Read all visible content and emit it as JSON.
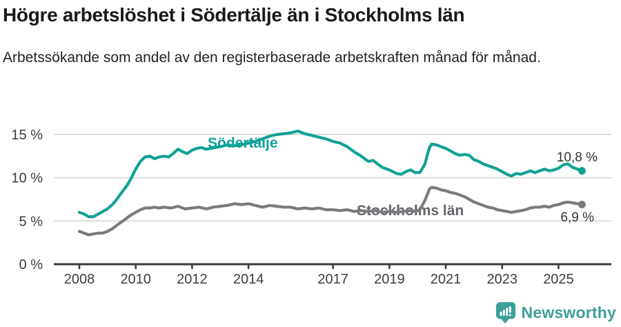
{
  "header": {
    "title": "Högre arbetslöshet i Södertälje än i Stockholms län",
    "subtitle": "Arbetssökande som andel av den registerbaserade arbetskraften månad för månad."
  },
  "footer": {
    "brand": "Newsworthy"
  },
  "colors": {
    "sodertalje": "#10a296",
    "stockholm_line": "#7b7b7e",
    "stockholm_label": "#64646a",
    "value_label": "#333333",
    "grid": "#dcdcdc",
    "axis": "#3a3a3a",
    "title_text": "#1a1a1a",
    "logo_teal": "#3f9e99"
  },
  "chart_data": {
    "type": "line",
    "title": "Högre arbetslöshet i Södertälje än i Stockholms län",
    "subtitle": "Arbetssökande som andel av den registerbaserade arbetskraften månad för månad.",
    "xlabel": "",
    "ylabel": "",
    "unit": "%",
    "grid": "horizontal-only",
    "legend_position": "inline-labels",
    "xlim": [
      2007.1,
      2026.9
    ],
    "ylim": [
      0,
      16
    ],
    "x_ticks": [
      2008,
      2010,
      2012,
      2014,
      2017,
      2019,
      2021,
      2023,
      2025
    ],
    "x_tick_labels": [
      "2008",
      "2010",
      "2012",
      "2014",
      "2017",
      "2019",
      "2021",
      "2023",
      "2025"
    ],
    "y_ticks": [
      0,
      5,
      10,
      15
    ],
    "y_tick_labels": [
      "0 %",
      "5 %",
      "10 %",
      "15 %"
    ],
    "series": [
      {
        "id": "sodertalje",
        "name": "Södertälje",
        "inline_label": "Södertälje",
        "end_label": "10,8 %",
        "end_value": 10.8,
        "color": "#10a296",
        "points": [
          [
            2008.0,
            6.0
          ],
          [
            2008.17,
            5.8
          ],
          [
            2008.33,
            5.5
          ],
          [
            2008.5,
            5.5
          ],
          [
            2008.67,
            5.8
          ],
          [
            2008.83,
            6.1
          ],
          [
            2009.0,
            6.4
          ],
          [
            2009.17,
            6.9
          ],
          [
            2009.33,
            7.5
          ],
          [
            2009.5,
            8.3
          ],
          [
            2009.67,
            9.0
          ],
          [
            2009.83,
            9.9
          ],
          [
            2010.0,
            11.0
          ],
          [
            2010.17,
            11.9
          ],
          [
            2010.33,
            12.4
          ],
          [
            2010.5,
            12.5
          ],
          [
            2010.67,
            12.2
          ],
          [
            2010.83,
            12.4
          ],
          [
            2011.0,
            12.5
          ],
          [
            2011.17,
            12.4
          ],
          [
            2011.33,
            12.8
          ],
          [
            2011.5,
            13.3
          ],
          [
            2011.67,
            13.0
          ],
          [
            2011.83,
            12.8
          ],
          [
            2012.0,
            13.2
          ],
          [
            2012.17,
            13.4
          ],
          [
            2012.33,
            13.5
          ],
          [
            2012.5,
            13.3
          ],
          [
            2012.67,
            13.4
          ],
          [
            2012.83,
            13.5
          ],
          [
            2013.0,
            13.6
          ],
          [
            2013.25,
            13.8
          ],
          [
            2013.5,
            13.7
          ],
          [
            2013.75,
            13.8
          ],
          [
            2014.0,
            14.0
          ],
          [
            2014.25,
            14.2
          ],
          [
            2014.5,
            14.5
          ],
          [
            2014.75,
            14.8
          ],
          [
            2015.0,
            15.0
          ],
          [
            2015.25,
            15.1
          ],
          [
            2015.5,
            15.2
          ],
          [
            2015.75,
            15.4
          ],
          [
            2016.0,
            15.1
          ],
          [
            2016.25,
            14.9
          ],
          [
            2016.5,
            14.7
          ],
          [
            2016.75,
            14.5
          ],
          [
            2017.0,
            14.2
          ],
          [
            2017.25,
            14.0
          ],
          [
            2017.5,
            13.6
          ],
          [
            2017.75,
            13.0
          ],
          [
            2018.0,
            12.5
          ],
          [
            2018.25,
            11.9
          ],
          [
            2018.42,
            12.0
          ],
          [
            2018.58,
            11.6
          ],
          [
            2018.75,
            11.2
          ],
          [
            2019.0,
            10.9
          ],
          [
            2019.25,
            10.5
          ],
          [
            2019.42,
            10.4
          ],
          [
            2019.58,
            10.7
          ],
          [
            2019.75,
            10.9
          ],
          [
            2019.92,
            10.6
          ],
          [
            2020.08,
            10.6
          ],
          [
            2020.25,
            11.5
          ],
          [
            2020.42,
            13.5
          ],
          [
            2020.5,
            13.9
          ],
          [
            2020.67,
            13.8
          ],
          [
            2020.83,
            13.6
          ],
          [
            2021.0,
            13.4
          ],
          [
            2021.17,
            13.1
          ],
          [
            2021.33,
            12.8
          ],
          [
            2021.5,
            12.6
          ],
          [
            2021.67,
            12.7
          ],
          [
            2021.83,
            12.6
          ],
          [
            2022.0,
            12.1
          ],
          [
            2022.17,
            11.9
          ],
          [
            2022.33,
            11.6
          ],
          [
            2022.5,
            11.4
          ],
          [
            2022.67,
            11.2
          ],
          [
            2022.83,
            11.0
          ],
          [
            2023.0,
            10.7
          ],
          [
            2023.17,
            10.4
          ],
          [
            2023.33,
            10.2
          ],
          [
            2023.5,
            10.5
          ],
          [
            2023.67,
            10.4
          ],
          [
            2023.83,
            10.6
          ],
          [
            2024.0,
            10.8
          ],
          [
            2024.17,
            10.6
          ],
          [
            2024.33,
            10.8
          ],
          [
            2024.5,
            11.0
          ],
          [
            2024.67,
            10.8
          ],
          [
            2024.83,
            10.9
          ],
          [
            2025.0,
            11.1
          ],
          [
            2025.17,
            11.5
          ],
          [
            2025.33,
            11.6
          ],
          [
            2025.5,
            11.2
          ],
          [
            2025.67,
            11.0
          ],
          [
            2025.83,
            10.8
          ]
        ]
      },
      {
        "id": "stockholms-lan",
        "name": "Stockholms län",
        "inline_label": "Stockholms län",
        "end_label": "6,9 %",
        "end_value": 6.9,
        "color": "#7b7b7e",
        "points": [
          [
            2008.0,
            3.8
          ],
          [
            2008.17,
            3.6
          ],
          [
            2008.33,
            3.4
          ],
          [
            2008.5,
            3.5
          ],
          [
            2008.67,
            3.6
          ],
          [
            2008.83,
            3.6
          ],
          [
            2009.0,
            3.8
          ],
          [
            2009.17,
            4.1
          ],
          [
            2009.33,
            4.5
          ],
          [
            2009.5,
            4.9
          ],
          [
            2009.67,
            5.3
          ],
          [
            2009.83,
            5.7
          ],
          [
            2010.0,
            6.0
          ],
          [
            2010.17,
            6.3
          ],
          [
            2010.33,
            6.5
          ],
          [
            2010.5,
            6.5
          ],
          [
            2010.67,
            6.6
          ],
          [
            2010.83,
            6.5
          ],
          [
            2011.0,
            6.6
          ],
          [
            2011.25,
            6.5
          ],
          [
            2011.5,
            6.7
          ],
          [
            2011.75,
            6.4
          ],
          [
            2012.0,
            6.5
          ],
          [
            2012.25,
            6.6
          ],
          [
            2012.5,
            6.4
          ],
          [
            2012.75,
            6.6
          ],
          [
            2013.0,
            6.7
          ],
          [
            2013.25,
            6.8
          ],
          [
            2013.5,
            7.0
          ],
          [
            2013.75,
            6.9
          ],
          [
            2014.0,
            7.0
          ],
          [
            2014.25,
            6.8
          ],
          [
            2014.5,
            6.6
          ],
          [
            2014.75,
            6.8
          ],
          [
            2015.0,
            6.7
          ],
          [
            2015.25,
            6.6
          ],
          [
            2015.5,
            6.6
          ],
          [
            2015.75,
            6.4
          ],
          [
            2016.0,
            6.5
          ],
          [
            2016.25,
            6.4
          ],
          [
            2016.5,
            6.5
          ],
          [
            2016.75,
            6.3
          ],
          [
            2017.0,
            6.3
          ],
          [
            2017.25,
            6.2
          ],
          [
            2017.5,
            6.3
          ],
          [
            2017.75,
            6.1
          ],
          [
            2018.0,
            6.2
          ],
          [
            2018.25,
            6.1
          ],
          [
            2018.5,
            6.2
          ],
          [
            2018.75,
            6.0
          ],
          [
            2019.0,
            6.1
          ],
          [
            2019.25,
            6.0
          ],
          [
            2019.5,
            6.1
          ],
          [
            2019.75,
            6.2
          ],
          [
            2019.92,
            6.1
          ],
          [
            2020.08,
            6.3
          ],
          [
            2020.25,
            7.3
          ],
          [
            2020.42,
            8.7
          ],
          [
            2020.5,
            8.9
          ],
          [
            2020.67,
            8.8
          ],
          [
            2020.83,
            8.6
          ],
          [
            2021.0,
            8.5
          ],
          [
            2021.17,
            8.3
          ],
          [
            2021.33,
            8.2
          ],
          [
            2021.5,
            8.0
          ],
          [
            2021.67,
            7.8
          ],
          [
            2021.83,
            7.5
          ],
          [
            2022.0,
            7.2
          ],
          [
            2022.17,
            7.0
          ],
          [
            2022.33,
            6.8
          ],
          [
            2022.5,
            6.6
          ],
          [
            2022.67,
            6.5
          ],
          [
            2022.83,
            6.3
          ],
          [
            2023.0,
            6.2
          ],
          [
            2023.17,
            6.1
          ],
          [
            2023.33,
            6.0
          ],
          [
            2023.5,
            6.1
          ],
          [
            2023.67,
            6.2
          ],
          [
            2023.83,
            6.3
          ],
          [
            2024.0,
            6.5
          ],
          [
            2024.17,
            6.6
          ],
          [
            2024.33,
            6.6
          ],
          [
            2024.5,
            6.7
          ],
          [
            2024.67,
            6.6
          ],
          [
            2024.83,
            6.8
          ],
          [
            2025.0,
            6.9
          ],
          [
            2025.17,
            7.1
          ],
          [
            2025.33,
            7.2
          ],
          [
            2025.5,
            7.1
          ],
          [
            2025.67,
            7.0
          ],
          [
            2025.83,
            6.9
          ]
        ]
      }
    ]
  }
}
